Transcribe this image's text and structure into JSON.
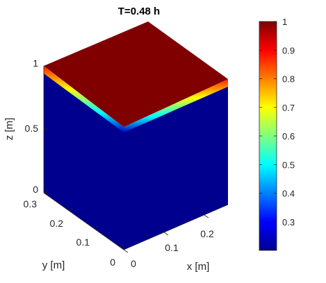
{
  "chart_data": {
    "type": "3d-surface",
    "title": "T=0.48 h",
    "xlabel": "x [m]",
    "ylabel": "y [m]",
    "zlabel": "z [m]",
    "x_ticks": [
      "0",
      "0.1",
      "0.2"
    ],
    "y_ticks": [
      "0",
      "0.1",
      "0.2",
      "0.3"
    ],
    "z_ticks": [
      "0",
      "0.5",
      "1"
    ],
    "colormap": "jet",
    "colorbar": {
      "ticks": [
        "0.3",
        "0.4",
        "0.5",
        "0.6",
        "0.7",
        "0.8",
        "0.9",
        "1"
      ],
      "clim": [
        0.2,
        1.0
      ]
    },
    "faces": {
      "top_value": 1.0,
      "side_value": 0.2,
      "transition_band_z": [
        0.93,
        0.96
      ]
    }
  }
}
